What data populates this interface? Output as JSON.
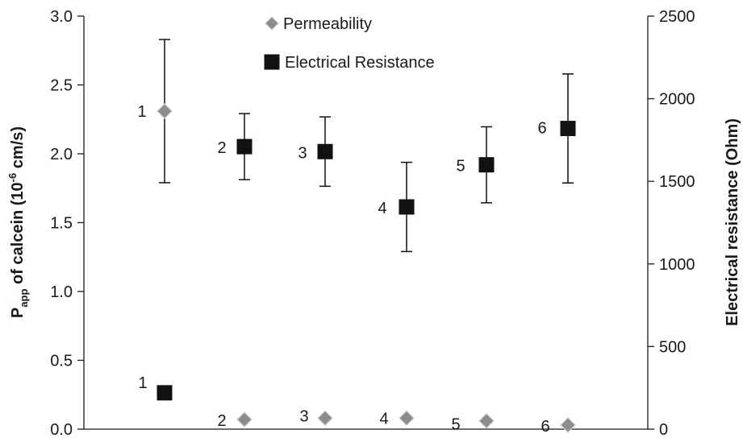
{
  "chart_data": {
    "type": "scatter",
    "categories": [
      "1",
      "2",
      "3",
      "4",
      "5",
      "6"
    ],
    "series": [
      {
        "name": "Permeability",
        "axis": "left",
        "marker": "diamond",
        "color": "#8c8c8c",
        "values": [
          2.31,
          0.07,
          0.08,
          0.08,
          0.06,
          0.03
        ],
        "error": [
          0.52,
          0,
          0,
          0,
          0,
          0
        ],
        "labels": [
          "1",
          "2",
          "3",
          "4",
          "5",
          "6"
        ]
      },
      {
        "name": "Electrical Resistance",
        "axis": "right",
        "marker": "square",
        "color": "#111111",
        "values": [
          220,
          1710,
          1680,
          1345,
          1600,
          1820
        ],
        "error": [
          0,
          200,
          210,
          270,
          230,
          330
        ],
        "labels": [
          "1",
          "2",
          "3",
          "4",
          "5",
          "6"
        ]
      }
    ],
    "y_left": {
      "label_main": "P",
      "label_sub": "app",
      "label_mid": " of calcein (10",
      "label_sup": "-6",
      "label_end": " cm/s)",
      "ylim": [
        0,
        3
      ],
      "ticks": [
        "0.0",
        "0.5",
        "1.0",
        "1.5",
        "2.0",
        "2.5",
        "3.0"
      ]
    },
    "y_right": {
      "label": "Electrical resistance (Ohm)",
      "ylim": [
        0,
        2500
      ],
      "ticks": [
        "0",
        "500",
        "1000",
        "1500",
        "2000",
        "2500"
      ]
    },
    "grid": false,
    "legend": "top-center"
  }
}
